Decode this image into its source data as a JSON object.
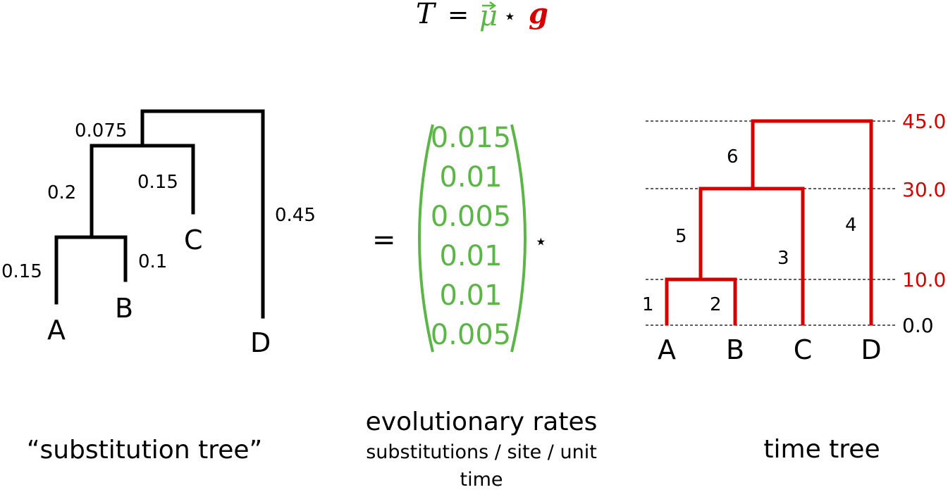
{
  "title": {
    "lhs": "T",
    "eq": "=",
    "mu": "μ",
    "star": "⋆",
    "g": "g",
    "colors": {
      "mu": "#5cb547",
      "g": "#d40000",
      "text": "#000000"
    }
  },
  "substitution_tree": {
    "caption": "“substitution tree”",
    "branch_lengths": {
      "root_to_abc": "0.075",
      "ab_to_abc": "0.2",
      "c": "0.15",
      "a": "0.15",
      "b": "0.1",
      "d": "0.45"
    },
    "leaves": {
      "a": "A",
      "b": "B",
      "c": "C",
      "d": "D"
    }
  },
  "rates": {
    "equals": "=",
    "star": "⋆",
    "values": [
      "0.015",
      "0.01",
      "0.005",
      "0.01",
      "0.01",
      "0.005"
    ],
    "caption": "evolutionary rates",
    "subcaption_line1": "substitutions / site / unit",
    "subcaption_line2": "time",
    "color": "#5cb547"
  },
  "time_tree": {
    "caption": "time tree",
    "color": "#d40000",
    "branch_numbers": {
      "b1": "1",
      "b2": "2",
      "b3": "3",
      "b4": "4",
      "b5": "5",
      "b6": "6"
    },
    "time_labels": [
      "45.0",
      "30.0",
      "10.0",
      "0.0"
    ],
    "leaves": {
      "a": "A",
      "b": "B",
      "c": "C",
      "d": "D"
    }
  }
}
